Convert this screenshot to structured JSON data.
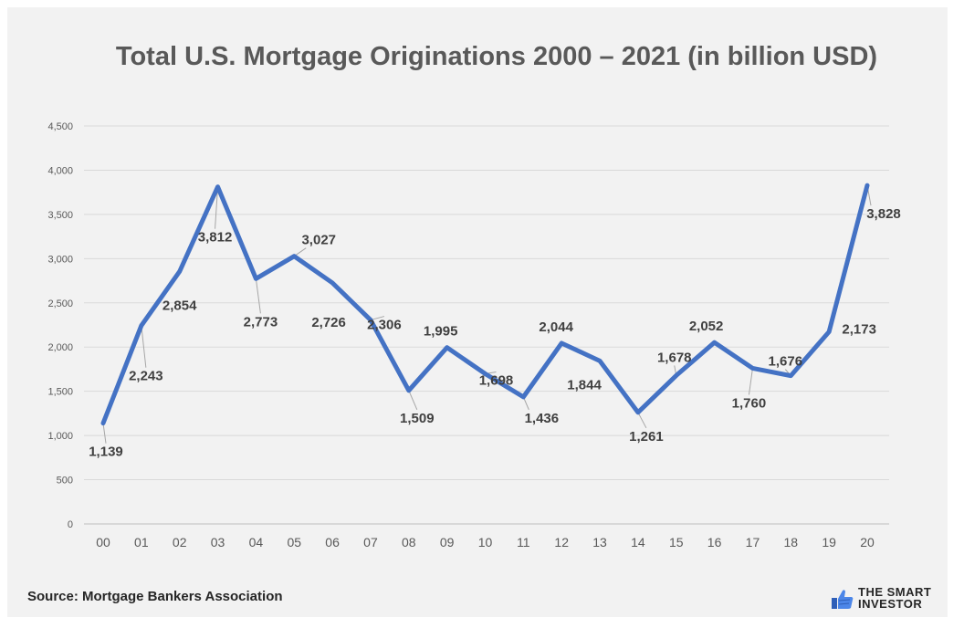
{
  "chart_data": {
    "type": "line",
    "title": "Total U.S. Mortgage Originations 2000 – 2021 (in billion USD)",
    "categories": [
      "00",
      "01",
      "02",
      "03",
      "04",
      "05",
      "06",
      "07",
      "08",
      "09",
      "10",
      "11",
      "12",
      "13",
      "14",
      "15",
      "16",
      "17",
      "18",
      "19",
      "20"
    ],
    "series": [
      {
        "values": [
          1139,
          2243,
          2854,
          3812,
          2773,
          3027,
          2726,
          2306,
          1509,
          1995,
          1698,
          1436,
          2044,
          1844,
          1261,
          1678,
          2052,
          1760,
          1676,
          2173,
          3828
        ],
        "color": "#4472c4"
      }
    ],
    "data_labels": [
      "1,139",
      "2,243",
      "2,854",
      "3,812",
      "2,773",
      "3,027",
      "2,726",
      "2,306",
      "1,509",
      "1,995",
      "1,698",
      "1,436",
      "2,044",
      "1,844",
      "1,261",
      "1,678",
      "2,052",
      "1,760",
      "1,676",
      "2,173",
      "3,828"
    ],
    "y_ticks": [
      "0",
      "500",
      "1,000",
      "1,500",
      "2,000",
      "2,500",
      "3,000",
      "3,500",
      "4,000",
      "4,500"
    ],
    "ylim": [
      0,
      4500
    ],
    "grid": true,
    "legend": "none"
  },
  "source": "Source: Mortgage Bankers Association",
  "brand": {
    "line1": "THE SMART",
    "line2": "INVESTOR",
    "logo_icon": "thumbs-up-icon",
    "color": "#3b6fd4"
  }
}
